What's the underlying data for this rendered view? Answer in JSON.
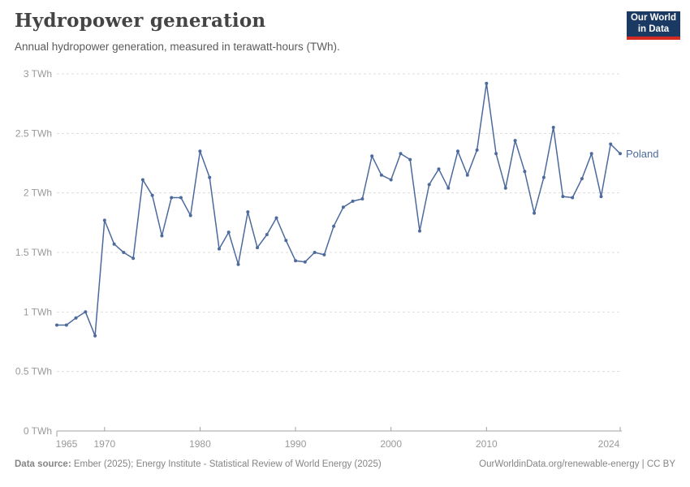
{
  "header": {
    "title": "Hydropower generation",
    "subtitle": "Annual hydropower generation, measured in terawatt-hours (TWh).",
    "logo": {
      "line1": "Our World",
      "line2": "in Data",
      "bg_color": "#1a3a63",
      "accent_color": "#d42b21"
    }
  },
  "chart_data": {
    "type": "line",
    "title": "Hydropower generation",
    "subtitle": "Annual hydropower generation, measured in terawatt-hours (TWh).",
    "xlim": [
      1965,
      2024
    ],
    "ylim": [
      0,
      3
    ],
    "grid": "horizontal-dashed",
    "legend_position": "end-of-line-label",
    "x_ticks": [
      1965,
      1970,
      1980,
      1990,
      2000,
      2010,
      2024
    ],
    "y_ticks": [
      0,
      0.5,
      1,
      1.5,
      2,
      2.5,
      3
    ],
    "y_tick_labels": [
      "0 TWh",
      "0.5 TWh",
      "1 TWh",
      "1.5 TWh",
      "2 TWh",
      "2.5 TWh",
      "3 TWh"
    ],
    "series": [
      {
        "name": "Poland",
        "color": "#4c6a9c",
        "x": [
          1965,
          1966,
          1967,
          1968,
          1969,
          1970,
          1971,
          1972,
          1973,
          1974,
          1975,
          1976,
          1977,
          1978,
          1979,
          1980,
          1981,
          1982,
          1983,
          1984,
          1985,
          1986,
          1987,
          1988,
          1989,
          1990,
          1991,
          1992,
          1993,
          1994,
          1995,
          1996,
          1997,
          1998,
          1999,
          2000,
          2001,
          2002,
          2003,
          2004,
          2005,
          2006,
          2007,
          2008,
          2009,
          2010,
          2011,
          2012,
          2013,
          2014,
          2015,
          2016,
          2017,
          2018,
          2019,
          2020,
          2021,
          2022,
          2023,
          2024
        ],
        "values": [
          0.89,
          0.89,
          0.95,
          1.0,
          0.8,
          1.77,
          1.57,
          1.5,
          1.45,
          2.11,
          1.98,
          1.64,
          1.96,
          1.96,
          1.81,
          2.35,
          2.13,
          1.53,
          1.67,
          1.4,
          1.84,
          1.54,
          1.65,
          1.79,
          1.6,
          1.43,
          1.42,
          1.5,
          1.48,
          1.72,
          1.88,
          1.93,
          1.95,
          2.31,
          2.15,
          2.11,
          2.33,
          2.28,
          1.68,
          2.07,
          2.2,
          2.04,
          2.35,
          2.15,
          2.36,
          2.92,
          2.33,
          2.04,
          2.44,
          2.18,
          1.83,
          2.13,
          2.55,
          1.97,
          1.96,
          2.12,
          2.33,
          1.97,
          2.41,
          2.33
        ]
      }
    ],
    "colors": {
      "grid": "#dddddd",
      "axis": "#a3a3a3",
      "tick_label": "#999999"
    }
  },
  "footer": {
    "source_label": "Data source:",
    "source_text": " Ember (2025); Energy Institute - Statistical Review of World Energy (2025)",
    "link": "OurWorldinData.org/renewable-energy | CC BY"
  }
}
